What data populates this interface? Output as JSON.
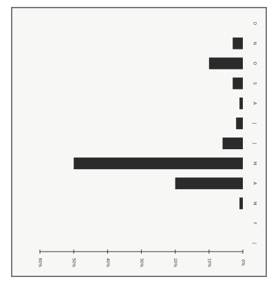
{
  "chart_data": {
    "type": "bar",
    "orientation": "horizontal-rotated",
    "categories": [
      "J",
      "F",
      "M",
      "A",
      "M",
      "J",
      "J",
      "A",
      "S",
      "O",
      "N",
      "D"
    ],
    "values": [
      0,
      0,
      1,
      20,
      50,
      6,
      2,
      1,
      3,
      10,
      3,
      0
    ],
    "value_tick_labels": [
      "0%",
      "10%",
      "20%",
      "30%",
      "40%",
      "50%",
      "60%"
    ],
    "ylim": [
      0,
      60
    ],
    "title": "",
    "xlabel": "",
    "ylabel": "",
    "grid": false,
    "colors": {
      "bar": "#2b2b2b",
      "frame": "#777777",
      "background": "#f7f7f5"
    }
  }
}
